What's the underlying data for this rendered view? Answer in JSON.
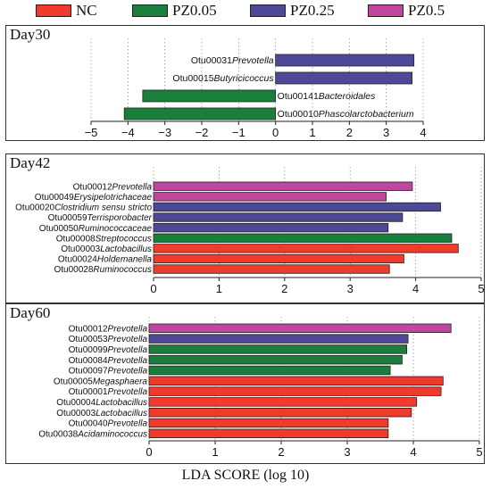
{
  "legend": [
    {
      "name": "NC",
      "color": "#f03a2c"
    },
    {
      "name": "PZ0.05",
      "color": "#1a7f3c"
    },
    {
      "name": "PZ0.25",
      "color": "#4d4898"
    },
    {
      "name": "PZ0.5",
      "color": "#c0479e"
    }
  ],
  "x_axis_label": "LDA SCORE (log 10)",
  "chart_data": [
    {
      "type": "bar",
      "title": "Day30",
      "xlim": [
        -5,
        4
      ],
      "ticks": [
        -5,
        -4,
        -3,
        -2,
        -1,
        0,
        1,
        2,
        3,
        4
      ],
      "tick_labels": [
        "−5",
        "−4",
        "−3",
        "−2",
        "−1",
        "0",
        "1",
        "2",
        "3",
        "4"
      ],
      "bars": [
        {
          "otu": "Otu00031",
          "taxon": "Prevotella",
          "group": "PZ0.25",
          "value": 3.75
        },
        {
          "otu": "Otu00015",
          "taxon": "Butyricicoccus",
          "group": "PZ0.25",
          "value": 3.7
        },
        {
          "otu": "Otu00141",
          "taxon": "Bacteroidales",
          "group": "PZ0.05",
          "value": -3.6
        },
        {
          "otu": "Otu00010",
          "taxon": "Phascolarctobacterium",
          "group": "PZ0.05",
          "value": -4.1
        }
      ]
    },
    {
      "type": "bar",
      "title": "Day42",
      "xlim": [
        0,
        5
      ],
      "ticks": [
        0,
        1,
        2,
        3,
        4,
        5
      ],
      "tick_labels": [
        "0",
        "1",
        "2",
        "3",
        "4",
        "5"
      ],
      "bars": [
        {
          "otu": "Otu00012",
          "taxon": "Prevotella",
          "group": "PZ0.5",
          "value": 3.95
        },
        {
          "otu": "Otu00049",
          "taxon": "Erysipelotrichaceae",
          "group": "PZ0.5",
          "value": 3.55
        },
        {
          "otu": "Otu00020",
          "taxon": "Clostridium sensu stricto",
          "group": "PZ0.25",
          "value": 4.38
        },
        {
          "otu": "Otu00059",
          "taxon": "Terrisporobacter",
          "group": "PZ0.25",
          "value": 3.8
        },
        {
          "otu": "Otu00050",
          "taxon": "Ruminococcaceae",
          "group": "PZ0.25",
          "value": 3.58
        },
        {
          "otu": "Otu00008",
          "taxon": "Streptococcus",
          "group": "PZ0.05",
          "value": 4.55
        },
        {
          "otu": "Otu00003",
          "taxon": "Lactobacillus",
          "group": "NC",
          "value": 4.65
        },
        {
          "otu": "Otu00024",
          "taxon": "Holdemanella",
          "group": "NC",
          "value": 3.82
        },
        {
          "otu": "Otu00028",
          "taxon": "Ruminococcus",
          "group": "NC",
          "value": 3.6
        }
      ]
    },
    {
      "type": "bar",
      "title": "Day60",
      "xlim": [
        0,
        5
      ],
      "ticks": [
        0,
        1,
        2,
        3,
        4,
        5
      ],
      "tick_labels": [
        "0",
        "1",
        "2",
        "3",
        "4",
        "5"
      ],
      "bars": [
        {
          "otu": "Otu00012",
          "taxon": "Prevotella",
          "group": "PZ0.5",
          "value": 4.57
        },
        {
          "otu": "Otu00053",
          "taxon": "Prevotella",
          "group": "PZ0.25",
          "value": 3.92
        },
        {
          "otu": "Otu00099",
          "taxon": "Prevotella",
          "group": "PZ0.05",
          "value": 3.9
        },
        {
          "otu": "Otu00084",
          "taxon": "Prevotella",
          "group": "PZ0.05",
          "value": 3.83
        },
        {
          "otu": "Otu00097",
          "taxon": "Prevotella",
          "group": "PZ0.05",
          "value": 3.65
        },
        {
          "otu": "Otu00005",
          "taxon": "Megasphaera",
          "group": "NC",
          "value": 4.45
        },
        {
          "otu": "Otu00001",
          "taxon": "Prevotella",
          "group": "NC",
          "value": 4.42
        },
        {
          "otu": "Otu00004",
          "taxon": "Lactobacillus",
          "group": "NC",
          "value": 4.05
        },
        {
          "otu": "Otu00003",
          "taxon": "Lactobacillus",
          "group": "NC",
          "value": 3.97
        },
        {
          "otu": "Otu00040",
          "taxon": "Prevotella",
          "group": "NC",
          "value": 3.62
        },
        {
          "otu": "Otu00038",
          "taxon": "Acidaminococcus",
          "group": "NC",
          "value": 3.62
        }
      ]
    }
  ]
}
